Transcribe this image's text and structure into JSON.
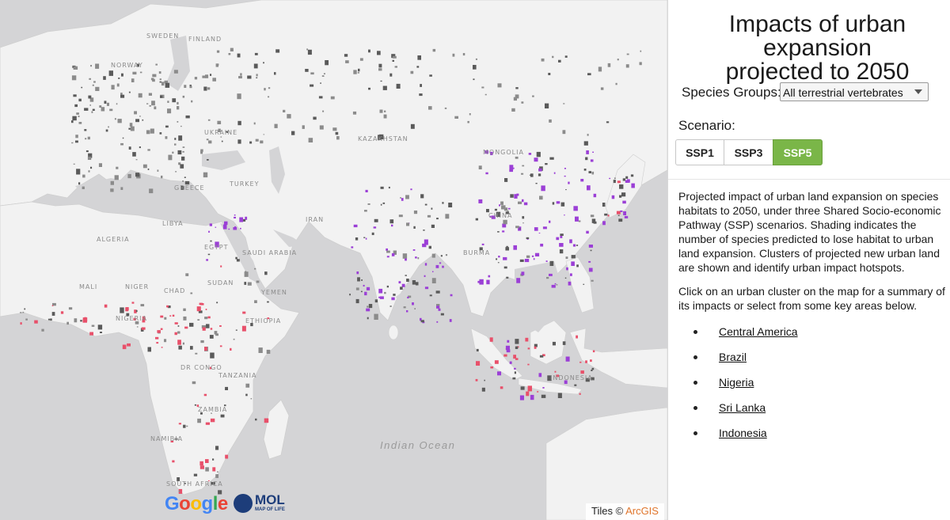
{
  "map": {
    "country_labels": [
      "SWEDEN",
      "FINLAND",
      "NORWAY",
      "UKRAINE",
      "KAZAKHSTAN",
      "MONGOLIA",
      "GREECE",
      "TURKEY",
      "IRAN",
      "ALGERIA",
      "LIBYA",
      "EGYPT",
      "SAUDI ARABIA",
      "CHINA",
      "MALI",
      "NIGER",
      "CHAD",
      "SUDAN",
      "NIGERIA",
      "ETHIOPIA",
      "DR CONGO",
      "TANZANIA",
      "ZAMBIA",
      "NAMIBIA",
      "SOUTH AFRICA",
      "INDONESIA",
      "BURMA",
      "YEMEN"
    ],
    "ocean_label": "Indian Ocean",
    "land_color": "#f2f2f2",
    "water_color": "#d4d4d6",
    "cluster_colors": [
      "#5a5a5a",
      "#8b8b8b",
      "#9b3fd6",
      "#e8506a"
    ],
    "attribution_prefix": "Tiles ©",
    "attribution_brand": "ArcGIS",
    "attribution_brand_color": "#e0762c",
    "google_logo": "Google",
    "mol_logo": "MOL",
    "mol_logo_sub": "MAP OF LIFE"
  },
  "panel": {
    "title_line1": "Impacts of urban expansion",
    "title_line2": "projected to 2050",
    "species_label": "Species Groups:",
    "species_selected": "All terrestrial vertebrates",
    "scenario_label": "Scenario:",
    "scenarios": [
      "SSP1",
      "SSP3",
      "SSP5"
    ],
    "active_scenario": "SSP5",
    "active_color": "#7ab648",
    "description": "Projected impact of urban land expansion on species habitats to 2050, under three Shared Socio-economic Pathway (SSP) scenarios. Shading indicates the number of species predicted to lose habitat to urban land expansion. Clusters of projected new urban land are shown and identify urban impact hotspots.",
    "instruction": "Click on an urban cluster on the map for a summary of its impacts or select from some key areas below.",
    "key_areas": [
      "Central America",
      "Brazil",
      "Nigeria",
      "Sri Lanka",
      "Indonesia"
    ]
  }
}
